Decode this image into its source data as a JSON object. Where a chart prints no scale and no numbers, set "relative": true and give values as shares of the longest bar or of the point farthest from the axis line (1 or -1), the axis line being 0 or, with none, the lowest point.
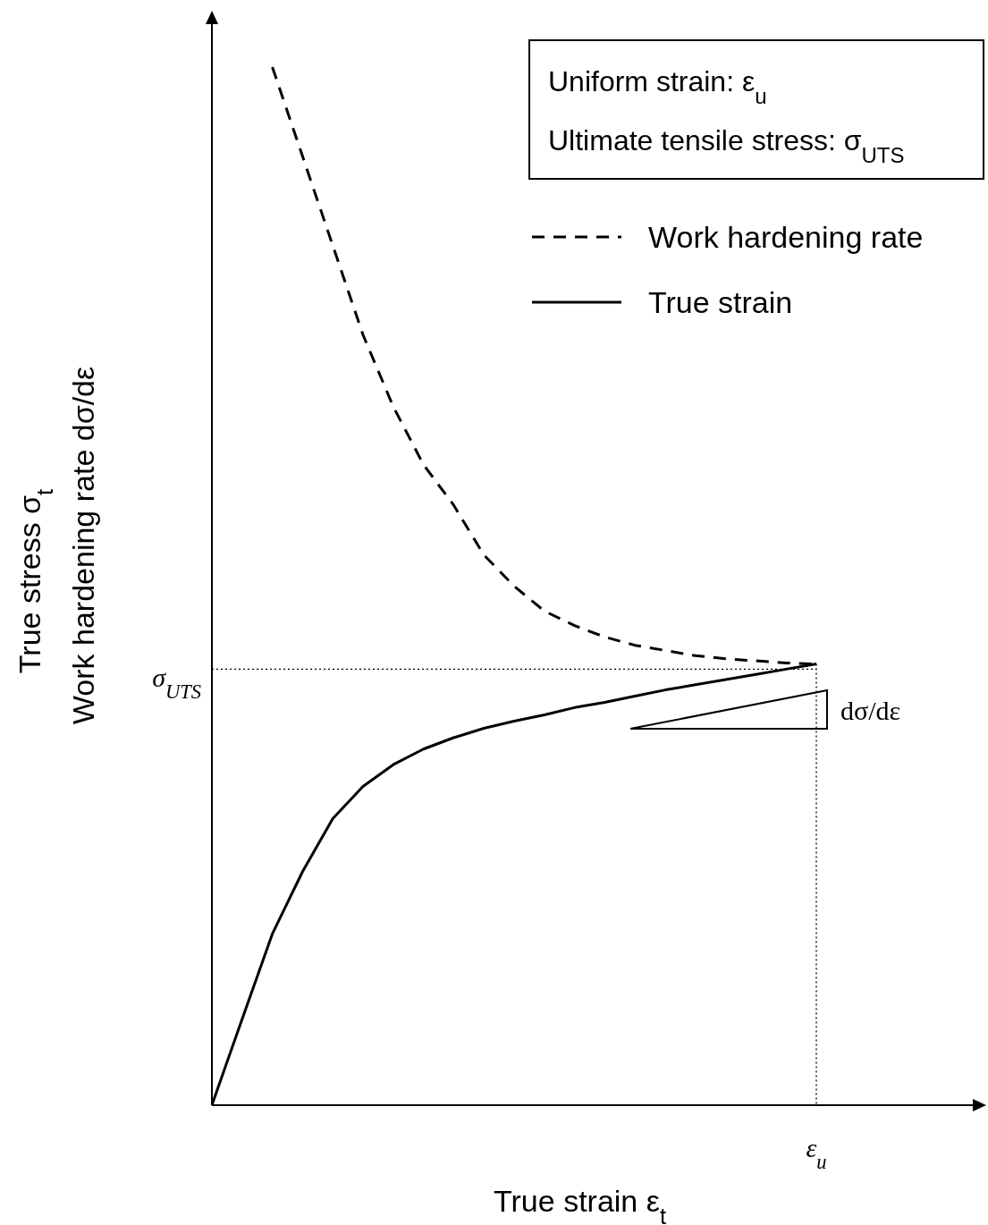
{
  "chart_data": {
    "type": "line",
    "relative": true,
    "xlabel": "True strain ε$_{t}$",
    "ylabel": "True stress σ$_{t}$\nWork hardening rate dσ/dε",
    "legend": "top right",
    "marker": "none",
    "categories": [
      null,
      null,
      null,
      null,
      null,
      null,
      null,
      null,
      null,
      null,
      null,
      null,
      null,
      null,
      null,
      null,
      null,
      null,
      null,
      null,
      null
    ],
    "annotations": [
      "Uniform strain: ε$_{u}$",
      "Ultimate tensile stress: σ$_{UTS}$",
      "dσ/dε"
    ],
    "ref_lines": [
      {
        "axis": "y",
        "value": 0.42,
        "label": "σ$_{UTS}$",
        "line_style": "dotted"
      },
      {
        "axis": "x",
        "label": "ε$_{u}$",
        "line_style": "dotted"
      }
    ],
    "series": [
      {
        "name": "Work hardening rate",
        "color": "#000000",
        "line_style": "dashed",
        "values": [
          null,
          null,
          1.0,
          0.914,
          0.828,
          0.742,
          0.673,
          0.617,
          0.578,
          0.53,
          0.5,
          0.476,
          0.462,
          0.451,
          0.443,
          0.438,
          0.433,
          0.43,
          0.428,
          0.426,
          0.425
        ]
      },
      {
        "name": "True strain",
        "color": "#000000",
        "line_style": "solid",
        "values": [
          0,
          0.083,
          0.165,
          0.225,
          0.276,
          0.307,
          0.328,
          0.343,
          0.354,
          0.363,
          0.37,
          0.376,
          0.383,
          0.388,
          0.394,
          0.4,
          0.405,
          0.41,
          0.415,
          0.42,
          0.425
        ]
      }
    ]
  }
}
